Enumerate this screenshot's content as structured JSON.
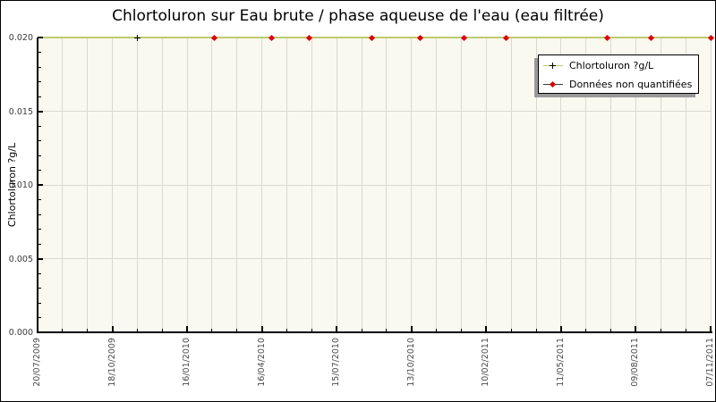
{
  "chart_data": {
    "type": "line",
    "title": "Chlortoluron sur Eau brute / phase aqueuse de l'eau (eau filtrée)",
    "ylabel": "Chlortoluron ?g/L",
    "xlabel": "",
    "ylim": [
      0,
      0.02
    ],
    "y_tick_labels": [
      "0.000",
      "0.005",
      "0.010",
      "0.015",
      "0.020"
    ],
    "y_tick_values": [
      0,
      0.005,
      0.01,
      0.015,
      0.02
    ],
    "y_minor_step": 0.001,
    "x_tick_labels": [
      "20/07/2009",
      "18/10/2009",
      "16/01/2010",
      "16/04/2010",
      "15/07/2010",
      "13/10/2010",
      "10/02/2011",
      "11/05/2011",
      "09/08/2011",
      "07/11/2011"
    ],
    "x_minor_divisions": 27,
    "grid": true,
    "legend": {
      "position": "top-right",
      "entries": [
        {
          "label": "Chlortoluron ?g/L",
          "marker": "plus",
          "marker_color": "#000000",
          "line_color": "#bdcb6c"
        },
        {
          "label": "Données non quantifiées",
          "marker": "diamond",
          "marker_color": "#dd0000",
          "line_color": "#3c3c3c"
        }
      ]
    },
    "line": {
      "y_value": 0.02,
      "x_frac_start": 0,
      "x_frac_end": 1,
      "color": "#bdcb6c"
    },
    "series": [
      {
        "name": "Chlortoluron ?g/L",
        "marker": "plus",
        "color": "#000000",
        "points": [
          {
            "x_frac": 0.148,
            "y": 0.02
          }
        ]
      },
      {
        "name": "Données non quantifiées",
        "marker": "diamond",
        "color": "#dd0000",
        "points": [
          {
            "x_frac": 0.263,
            "y": 0.02
          },
          {
            "x_frac": 0.348,
            "y": 0.02
          },
          {
            "x_frac": 0.404,
            "y": 0.02
          },
          {
            "x_frac": 0.497,
            "y": 0.02
          },
          {
            "x_frac": 0.568,
            "y": 0.02
          },
          {
            "x_frac": 0.634,
            "y": 0.02
          },
          {
            "x_frac": 0.696,
            "y": 0.02
          },
          {
            "x_frac": 0.847,
            "y": 0.02
          },
          {
            "x_frac": 0.912,
            "y": 0.02
          },
          {
            "x_frac": 1.0,
            "y": 0.02
          }
        ]
      }
    ],
    "colors": {
      "page_bg": "#ffffff",
      "page_border": "#000000",
      "plot_bg": "#f9f9ef",
      "grid": "#d9d9d2",
      "axis": "#000000",
      "title_text": "#000000",
      "tick_label_text": "#4a4a4a",
      "legend_bg": "#ffffff",
      "legend_border": "#000000",
      "legend_shadow": "#999999"
    }
  }
}
